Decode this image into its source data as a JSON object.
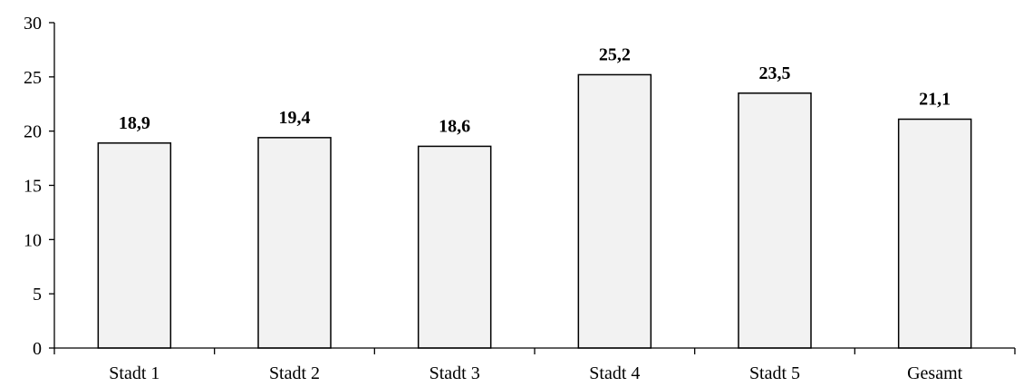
{
  "chart_data": {
    "type": "bar",
    "title": "",
    "xlabel": "",
    "ylabel": "",
    "categories": [
      "Stadt 1",
      "Stadt 2",
      "Stadt 3",
      "Stadt 4",
      "Stadt 5",
      "Gesamt"
    ],
    "values": [
      18.9,
      19.4,
      18.6,
      25.2,
      23.5,
      21.1
    ],
    "data_labels": [
      "18,9",
      "19,4",
      "18,6",
      "25,2",
      "23,5",
      "21,1"
    ],
    "ylim": [
      0,
      30
    ],
    "yticks": [
      0,
      5,
      10,
      15,
      20,
      25,
      30
    ],
    "ytick_labels": [
      "0",
      "5",
      "10",
      "15",
      "20",
      "25",
      "30"
    ],
    "grid": false,
    "legend": "none",
    "colors": {
      "bar_fill": "#f2f2f2",
      "bar_stroke": "#000000",
      "axis": "#000000"
    }
  }
}
